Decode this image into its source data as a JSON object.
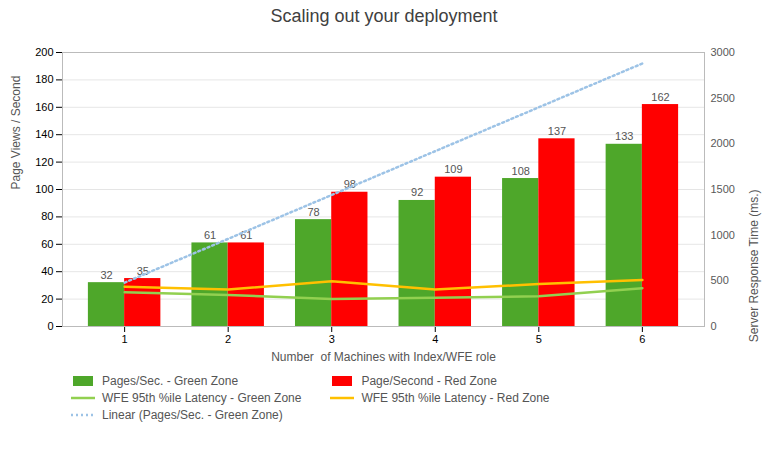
{
  "chart_data": {
    "type": "bar",
    "title": "Scaling out your deployment",
    "xlabel": "Number  of Machines with Index/WFE role",
    "ylabel": "Page Views / Second",
    "y2label": "Server Response Time (ms.)",
    "x": [
      1,
      2,
      3,
      4,
      5,
      6
    ],
    "xlim": [
      0.4,
      6.6
    ],
    "xticks": [
      1,
      2,
      3,
      4,
      5,
      6
    ],
    "ylim": [
      0,
      200
    ],
    "yticks": [
      0,
      20,
      40,
      60,
      80,
      100,
      120,
      140,
      160,
      180,
      200
    ],
    "y2lim": [
      0,
      3000
    ],
    "y2ticks": [
      0,
      500,
      1000,
      1500,
      2000,
      2500,
      3000
    ],
    "grid": true,
    "legend": "bottom",
    "series": [
      {
        "name": "Pages/Sec. - Green Zone",
        "type": "bar",
        "color": "#4EA72A",
        "data_labels": true,
        "values": [
          32,
          61,
          78,
          92,
          108,
          133
        ]
      },
      {
        "name": "Page/Second - Red Zone",
        "type": "bar",
        "color": "#FF0000",
        "data_labels": true,
        "values": [
          35,
          61,
          98,
          109,
          137,
          162
        ]
      },
      {
        "name": "WFE 95th %ile Latency - Green Zone",
        "type": "line",
        "color": "#92D050",
        "line_style": "solid",
        "values": [
          25,
          23,
          20,
          21,
          22,
          28
        ]
      },
      {
        "name": "WFE 95th %ile Latency - Red Zone",
        "type": "line",
        "color": "#FFC000",
        "line_style": "solid",
        "values": [
          29,
          27,
          33,
          27,
          31,
          34
        ]
      },
      {
        "name": "Linear (Pages/Sec. - Green Zone)",
        "type": "line",
        "color": "#9DC3E6",
        "line_style": "dotted",
        "values": [
          32,
          64,
          96,
          128,
          160,
          192
        ]
      }
    ]
  }
}
